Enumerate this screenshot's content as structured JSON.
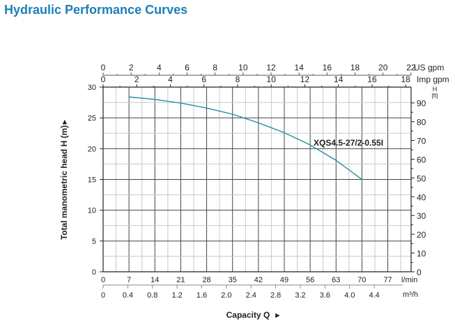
{
  "title": "Hydraulic Performance Curves",
  "chart_data": {
    "type": "line",
    "title": "Hydraulic Performance Curves",
    "xlabel": "Capacity Q",
    "ylabel": "Total manometric head H (m)",
    "right_axis_label": [
      "H",
      "[ft]"
    ],
    "xlim_lmin": [
      0,
      83.3
    ],
    "ylim_m": [
      0,
      30
    ],
    "grid": true,
    "axes": {
      "us_gpm": {
        "label": "US gpm",
        "ticks": [
          0,
          2,
          4,
          6,
          8,
          10,
          12,
          14,
          16,
          18,
          20,
          22
        ]
      },
      "imp_gpm": {
        "label": "Imp gpm",
        "ticks": [
          0,
          2,
          4,
          6,
          8,
          10,
          12,
          14,
          16,
          18
        ]
      },
      "lmin": {
        "label": "l/min",
        "ticks": [
          0,
          7,
          14,
          21,
          28,
          35,
          42,
          49,
          56,
          63,
          70,
          77
        ]
      },
      "m3h": {
        "label": "m³/h",
        "ticks": [
          "0",
          "0.4",
          "0.8",
          "1.2",
          "1.6",
          "2.0",
          "2.4",
          "2.8",
          "3.2",
          "3.6",
          "4.0",
          "4.4"
        ]
      },
      "head_m": {
        "ticks": [
          0,
          5,
          10,
          15,
          20,
          25,
          30
        ]
      },
      "head_ft": {
        "ticks": [
          0,
          10,
          20,
          30,
          40,
          50,
          60,
          70,
          80,
          90
        ]
      }
    },
    "series": [
      {
        "name": "XQS4.5-27/2-0.55I",
        "color": "#1f8f9a",
        "x_lmin": [
          7,
          14,
          21,
          28,
          35,
          42,
          49,
          56,
          63,
          70
        ],
        "y_m": [
          28.4,
          28.0,
          27.4,
          26.6,
          25.6,
          24.2,
          22.6,
          20.6,
          18.1,
          15.0
        ]
      }
    ]
  }
}
